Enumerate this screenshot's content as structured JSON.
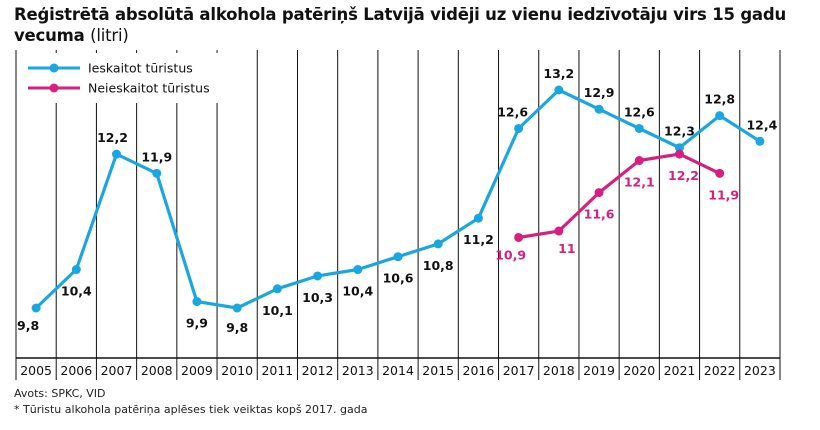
{
  "chart_data": {
    "type": "line",
    "title": "Reģistrētā absolūtā alkohola patēriņš Latvijā vidēji uz vienu iedzīvotāju virs 15 gadu vecuma",
    "unit": "(litri)",
    "x": [
      "2005",
      "2006",
      "2007",
      "2008",
      "2009",
      "2010",
      "2011",
      "2012",
      "2013",
      "2014",
      "2015",
      "2016",
      "2017",
      "2018",
      "2019",
      "2020",
      "2021",
      "2022",
      "2023"
    ],
    "series": [
      {
        "name": "Ieskaitot tūristus",
        "color": "#1ba6e0",
        "values": [
          9.8,
          10.4,
          12.2,
          11.9,
          9.9,
          9.8,
          10.1,
          10.3,
          10.4,
          10.6,
          10.8,
          11.2,
          12.6,
          13.2,
          12.9,
          12.6,
          12.3,
          12.8,
          12.4
        ],
        "labels": [
          "9,8",
          "10,4",
          "12,2",
          "11,9",
          "9,9",
          "9,8",
          "10,1",
          "10,3",
          "10,4",
          "10,6",
          "10,8",
          "11,2",
          "12,6",
          "13,2",
          "12,9",
          "12,6",
          "12,3",
          "12,8",
          "12,4"
        ]
      },
      {
        "name": "Neieskaitot tūristus",
        "color": "#d6207f",
        "values": [
          null,
          null,
          null,
          null,
          null,
          null,
          null,
          null,
          null,
          null,
          null,
          null,
          10.9,
          11.0,
          11.6,
          12.1,
          12.2,
          11.9,
          null
        ],
        "labels": [
          "",
          "",
          "",
          "",
          "",
          "",
          "",
          "",
          "",
          "",
          "",
          "",
          "10,9",
          "11",
          "11,6",
          "12,1",
          "12,2",
          "11,9",
          ""
        ]
      }
    ],
    "grid": "vertical"
  },
  "footer": {
    "source": "Avots: SPKC, VID",
    "note": "* Tūristu alkohola patēriņa aplēses tiek veiktas kopš 2017. gada"
  }
}
